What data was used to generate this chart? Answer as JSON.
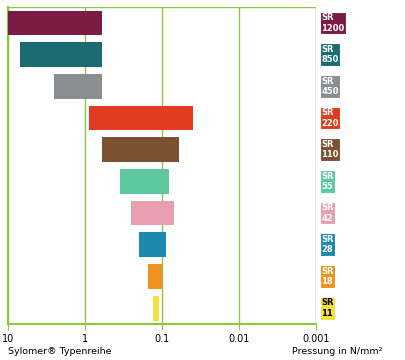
{
  "categories": [
    "SR\n1200",
    "SR\n850",
    "SR\n450",
    "SR\n220",
    "SR\n110",
    "SR\n55",
    "SR\n42",
    "SR\n28",
    "SR\n18",
    "SR\n11"
  ],
  "bar_colors": [
    "#7B1C45",
    "#1B6B72",
    "#8B8E90",
    "#E03C1F",
    "#7B5132",
    "#5DC8A0",
    "#E8A0B0",
    "#1B8AB0",
    "#F0921E",
    "#F0E040"
  ],
  "label_colors": [
    "white",
    "white",
    "white",
    "white",
    "white",
    "white",
    "white",
    "white",
    "white",
    "black"
  ],
  "bar_right": [
    10.0,
    7.0,
    2.5,
    0.9,
    0.6,
    0.35,
    0.25,
    0.2,
    0.15,
    0.13
  ],
  "bar_left": [
    0.6,
    0.6,
    0.6,
    0.04,
    0.06,
    0.08,
    0.07,
    0.09,
    0.1,
    0.11
  ],
  "xmin": 0.001,
  "xmax": 10.0,
  "xlabel_left": "Sylomer® Typenreihe",
  "xlabel_right": "Pressung in N/mm²",
  "xticks": [
    10,
    1,
    0.1,
    0.01,
    0.001
  ],
  "xtick_labels": [
    "10",
    "1",
    "0.1",
    "0.01",
    "0.001"
  ],
  "axis_color": "#8DC63F",
  "grid_color": "#8DC63F",
  "background_color": "#ffffff",
  "label_fontsize": 6.0,
  "tick_fontsize": 7.0,
  "footer_fontsize": 6.8
}
